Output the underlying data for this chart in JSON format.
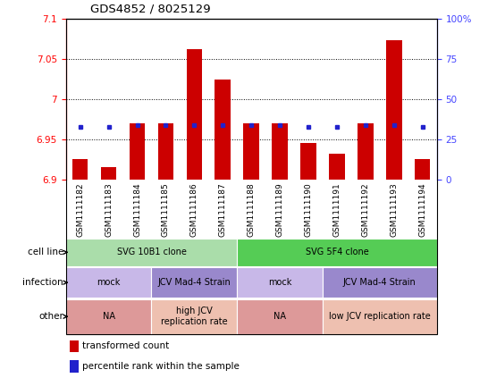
{
  "title": "GDS4852 / 8025129",
  "samples": [
    "GSM1111182",
    "GSM1111183",
    "GSM1111184",
    "GSM1111185",
    "GSM1111186",
    "GSM1111187",
    "GSM1111188",
    "GSM1111189",
    "GSM1111190",
    "GSM1111191",
    "GSM1111192",
    "GSM1111193",
    "GSM1111194"
  ],
  "red_values": [
    6.925,
    6.915,
    6.97,
    6.97,
    7.062,
    7.025,
    6.97,
    6.97,
    6.945,
    6.932,
    6.97,
    7.073,
    6.926
  ],
  "blue_values": [
    6.965,
    6.965,
    6.968,
    6.968,
    6.968,
    6.968,
    6.968,
    6.968,
    6.966,
    6.966,
    6.968,
    6.968,
    6.966
  ],
  "ymin": 6.9,
  "ymax": 7.1,
  "yticks": [
    6.9,
    6.95,
    7.0,
    7.05,
    7.1
  ],
  "ytick_labels": [
    "6.9",
    "6.95",
    "7",
    "7.05",
    "7.1"
  ],
  "y2ticks": [
    0,
    25,
    50,
    75,
    100
  ],
  "y2tick_labels": [
    "0",
    "25",
    "50",
    "75",
    "100%"
  ],
  "grid_lines": [
    6.95,
    7.0,
    7.05
  ],
  "bar_color": "#cc0000",
  "dot_color": "#2222cc",
  "sample_bg": "#d8d8d8",
  "cell_line_groups": [
    {
      "label": "SVG 10B1 clone",
      "start": 0,
      "end": 6,
      "color": "#aaddaa"
    },
    {
      "label": "SVG 5F4 clone",
      "start": 6,
      "end": 13,
      "color": "#55cc55"
    }
  ],
  "infection_groups": [
    {
      "label": "mock",
      "start": 0,
      "end": 3,
      "color": "#c8b8e8"
    },
    {
      "label": "JCV Mad-4 Strain",
      "start": 3,
      "end": 6,
      "color": "#9988cc"
    },
    {
      "label": "mock",
      "start": 6,
      "end": 9,
      "color": "#c8b8e8"
    },
    {
      "label": "JCV Mad-4 Strain",
      "start": 9,
      "end": 13,
      "color": "#9988cc"
    }
  ],
  "other_groups": [
    {
      "label": "NA",
      "start": 0,
      "end": 3,
      "color": "#dd9999"
    },
    {
      "label": "high JCV\nreplication rate",
      "start": 3,
      "end": 6,
      "color": "#eec0b0"
    },
    {
      "label": "NA",
      "start": 6,
      "end": 9,
      "color": "#dd9999"
    },
    {
      "label": "low JCV replication rate",
      "start": 9,
      "end": 13,
      "color": "#eec0b0"
    }
  ],
  "row_labels": [
    "cell line",
    "infection",
    "other"
  ],
  "legend_red_label": "transformed count",
  "legend_blue_label": "percentile rank within the sample"
}
